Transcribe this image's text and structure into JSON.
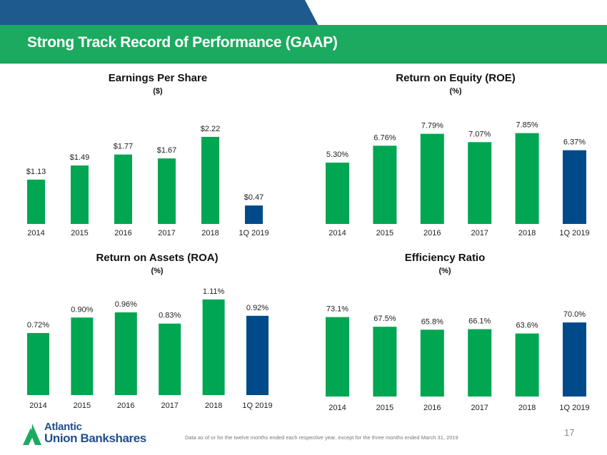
{
  "header": {
    "title": "Strong Track Record of Performance (GAAP)",
    "colors": {
      "band_blue": "#1E5A8E",
      "band_green": "#1BAA5F"
    }
  },
  "colors": {
    "bar_green": "#00A651",
    "bar_blue": "#004A8A"
  },
  "chart_data": [
    {
      "id": "eps",
      "type": "bar",
      "title": "Earnings Per Share",
      "subtitle": "($)",
      "categories": [
        "2014",
        "2015",
        "2016",
        "2017",
        "2018",
        "1Q 2019"
      ],
      "values": [
        1.13,
        1.49,
        1.77,
        1.67,
        2.22,
        0.47
      ],
      "labels": [
        "$1.13",
        "$1.49",
        "$1.77",
        "$1.67",
        "$2.22",
        "$0.47"
      ],
      "highlight_last": true,
      "xlabel": "",
      "ylabel": "",
      "ylim": [
        0,
        2.6
      ],
      "grid": false
    },
    {
      "id": "roe",
      "type": "bar",
      "title": "Return on Equity (ROE)",
      "subtitle": "(%)",
      "categories": [
        "2014",
        "2015",
        "2016",
        "2017",
        "2018",
        "1Q 2019"
      ],
      "values": [
        5.3,
        6.76,
        7.79,
        7.07,
        7.85,
        6.37
      ],
      "labels": [
        "5.30%",
        "6.76%",
        "7.79%",
        "7.07%",
        "7.85%",
        "6.37%"
      ],
      "highlight_last": true,
      "xlabel": "",
      "ylabel": "",
      "ylim": [
        0,
        9.0
      ],
      "grid": false
    },
    {
      "id": "roa",
      "type": "bar",
      "title": "Return on Assets (ROA)",
      "subtitle": "(%)",
      "categories": [
        "2014",
        "2015",
        "2016",
        "2017",
        "2018",
        "1Q 2019"
      ],
      "values": [
        0.72,
        0.9,
        0.96,
        0.83,
        1.11,
        0.92
      ],
      "labels": [
        "0.72%",
        "0.90%",
        "0.96%",
        "0.83%",
        "1.11%",
        "0.92%"
      ],
      "highlight_last": true,
      "xlabel": "",
      "ylabel": "",
      "ylim": [
        0,
        1.2
      ],
      "grid": false
    },
    {
      "id": "efficiency",
      "type": "bar",
      "title": "Efficiency Ratio",
      "subtitle": "(%)",
      "categories": [
        "2014",
        "2015",
        "2016",
        "2017",
        "2018",
        "1Q 2019"
      ],
      "values": [
        73.1,
        67.5,
        65.8,
        66.1,
        63.6,
        70.0
      ],
      "labels": [
        "73.1%",
        "67.5%",
        "65.8%",
        "66.1%",
        "63.6%",
        "70.0%"
      ],
      "highlight_last": true,
      "xlabel": "",
      "ylabel": "",
      "ylim": [
        27,
        80
      ],
      "grid": false
    }
  ],
  "footer": {
    "logo_line1": "Atlantic",
    "logo_line2": "Union Bankshares",
    "logo_color": "#1F4E8C",
    "footnote": "Data as of or for the twelve months ended each respective year,  except for the three months ended  March 31, 2019",
    "page_number": "17"
  }
}
